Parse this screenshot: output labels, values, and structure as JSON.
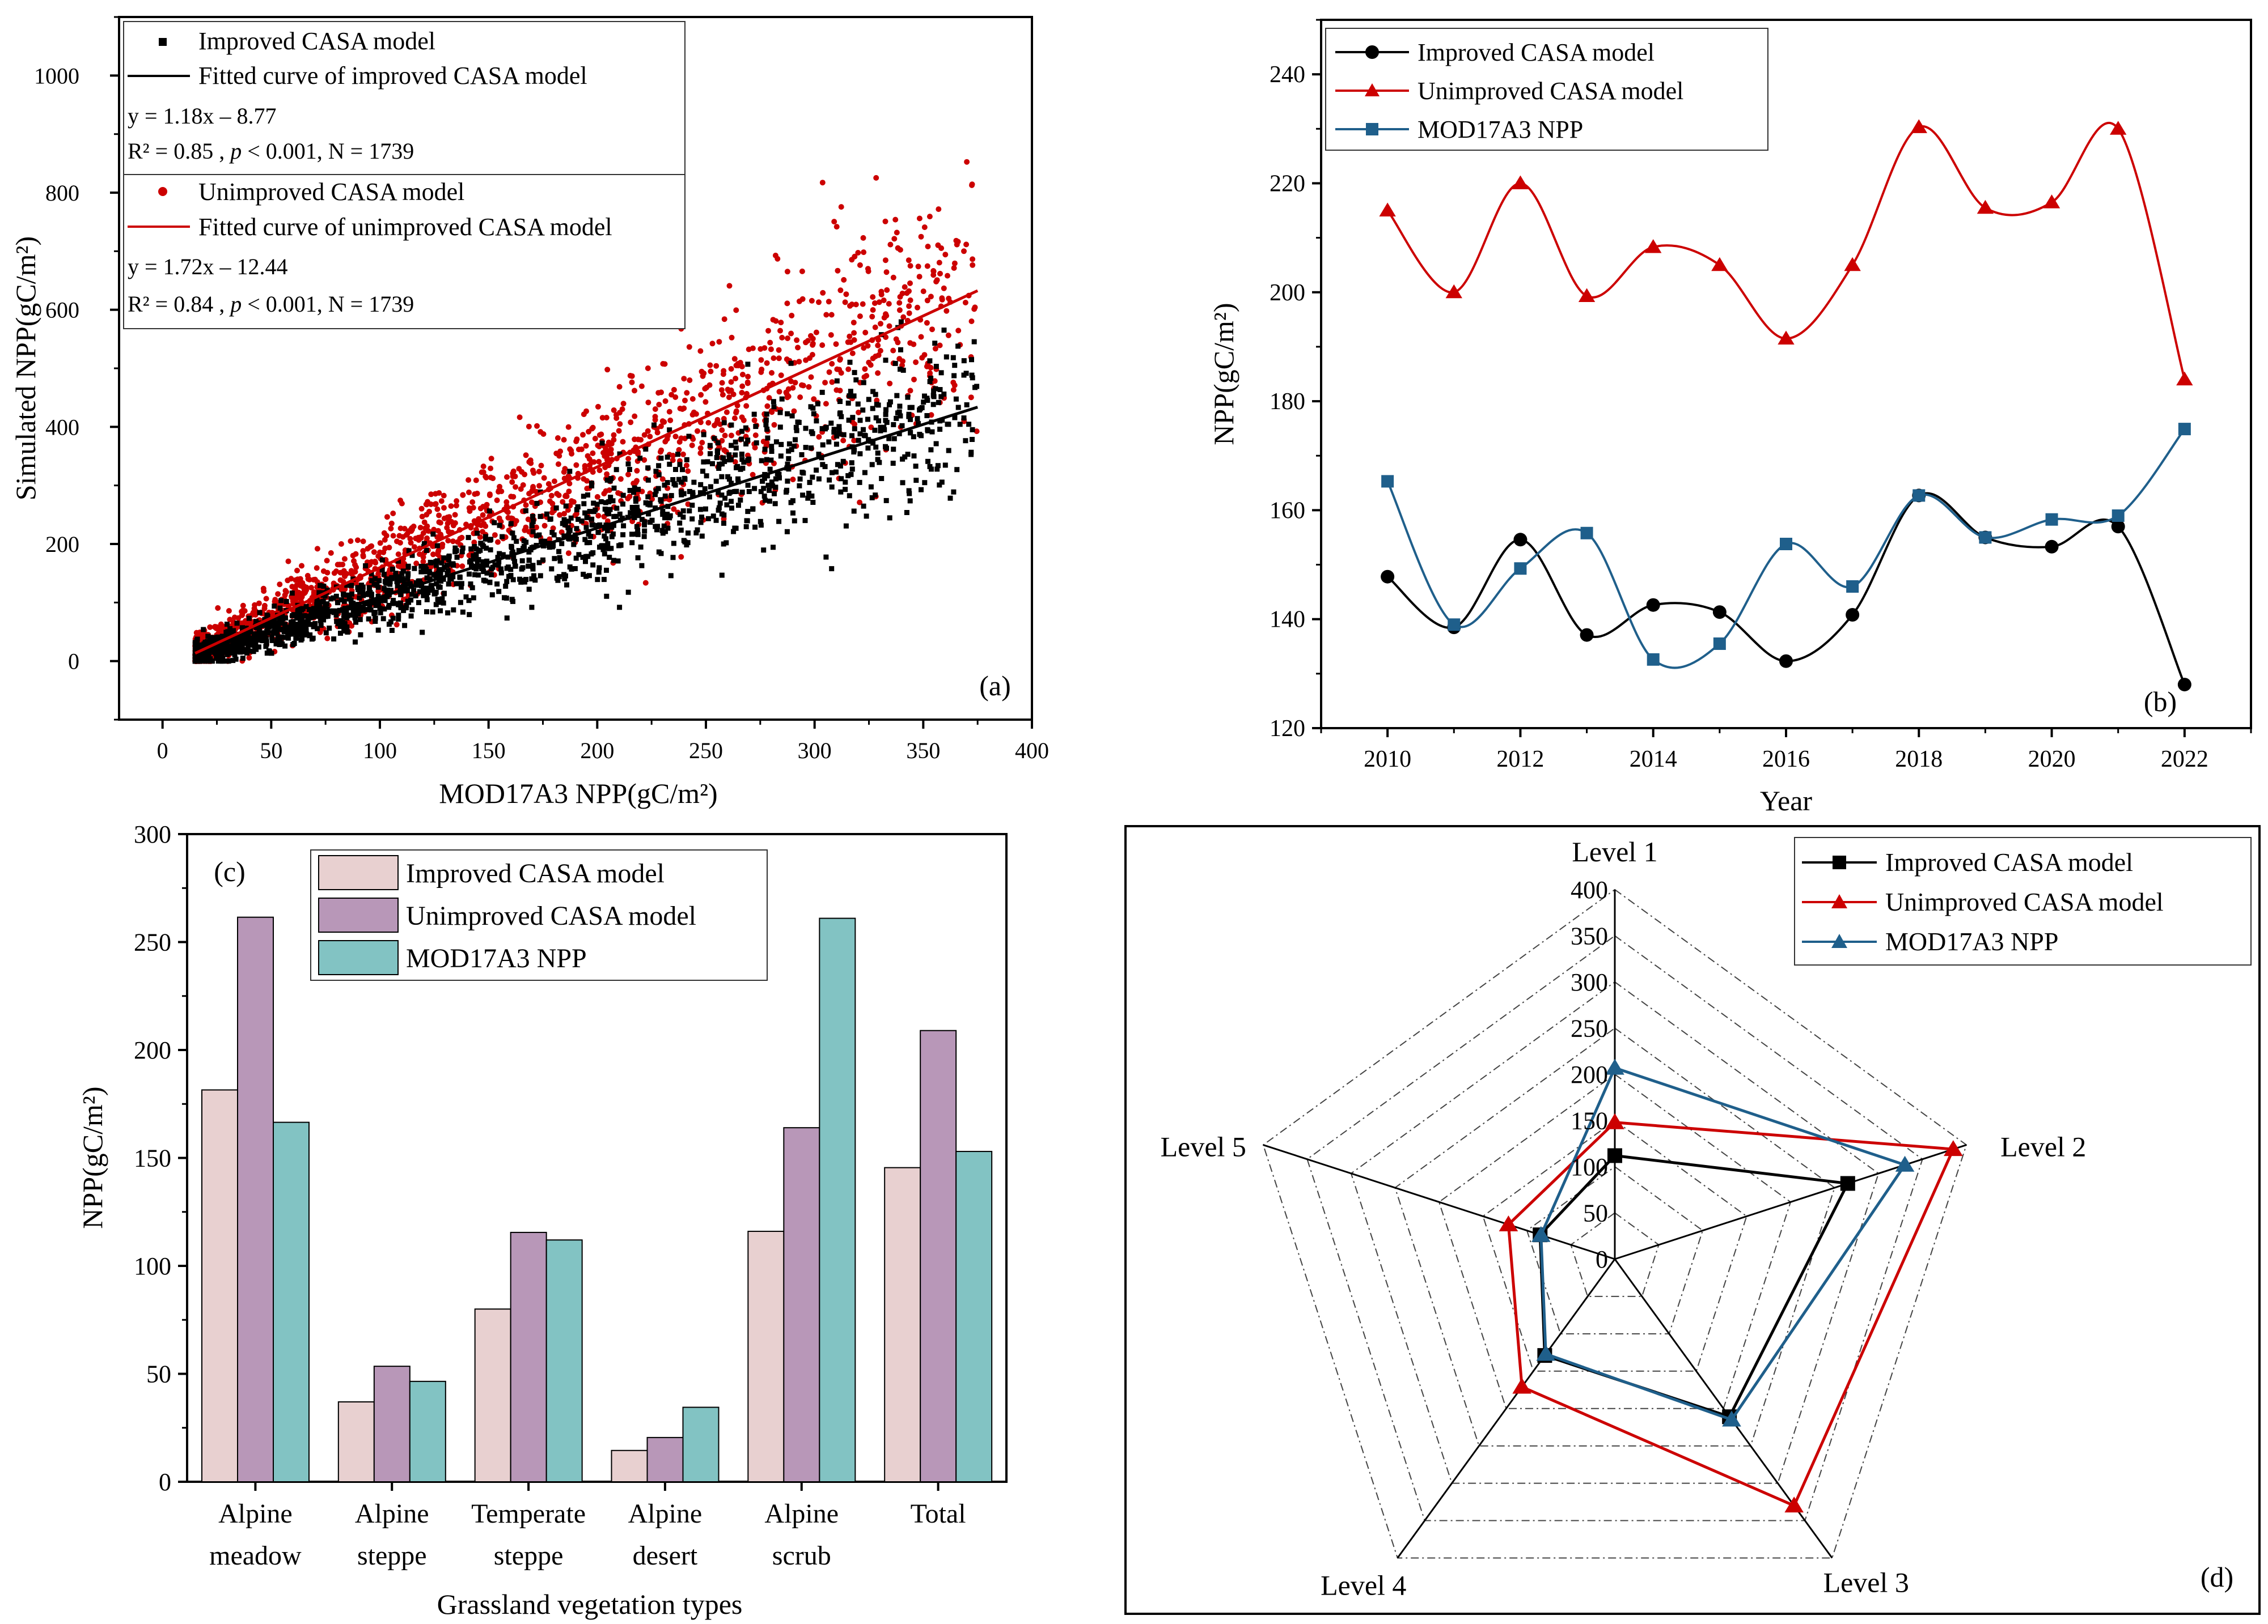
{
  "chart_data": [
    {
      "id": "a",
      "type": "scatter",
      "panel_label": "(a)",
      "xlabel": "MOD17A3 NPP(gC/m²)",
      "ylabel": "Simulated NPP(gC/m²)",
      "xlim": [
        -20,
        400
      ],
      "ylim": [
        -100,
        1100
      ],
      "xticks": [
        0,
        50,
        100,
        150,
        200,
        250,
        300,
        350,
        400
      ],
      "yticks": [
        0,
        200,
        400,
        600,
        800,
        1000
      ],
      "x_range_points": [
        15,
        375
      ],
      "series": [
        {
          "name": "Improved CASA model",
          "fit_name": "Fitted curve of improved CASA model",
          "slope": 1.18,
          "intercept": -8.77,
          "color": "#000000",
          "marker": "square",
          "equation": "y = 1.18x – 8.77",
          "stats_r2": "R² = 0.85 , ",
          "stats_p": "p",
          "stats_rest": " < 0.001, N = 1739"
        },
        {
          "name": "Unimproved CASA model",
          "fit_name": "Fitted curve of unimproved CASA model",
          "slope": 1.72,
          "intercept": -12.44,
          "color": "#cc0000",
          "marker": "circle",
          "equation": "y = 1.72x – 12.44",
          "stats_r2": "R² = 0.84 , ",
          "stats_p": "p",
          "stats_rest": " < 0.001, N = 1739"
        }
      ],
      "n_points": 1739
    },
    {
      "id": "b",
      "type": "line",
      "panel_label": "(b)",
      "xlabel": "Year",
      "ylabel": "NPP(gC/m²)",
      "xlim": [
        2009,
        2023
      ],
      "ylim": [
        120,
        250
      ],
      "xticks": [
        2010,
        2012,
        2014,
        2016,
        2018,
        2020,
        2022
      ],
      "yticks": [
        120,
        140,
        160,
        180,
        200,
        220,
        240
      ],
      "x": [
        2010,
        2011,
        2012,
        2013,
        2014,
        2015,
        2016,
        2017,
        2018,
        2019,
        2020,
        2021,
        2022
      ],
      "series": [
        {
          "name": "Improved CASA model",
          "color": "#000000",
          "marker": "circle",
          "values": [
            147.8,
            138.5,
            154.6,
            137.1,
            142.6,
            141.3,
            132.3,
            140.8,
            162.7,
            155.0,
            153.3,
            157.0,
            128.0
          ]
        },
        {
          "name": "Unimproved CASA model",
          "color": "#cc0000",
          "marker": "triangle",
          "values": [
            215.0,
            200.0,
            220.0,
            199.3,
            208.3,
            205.0,
            191.5,
            205.0,
            230.3,
            215.5,
            216.5,
            230.0,
            184.0
          ]
        },
        {
          "name": "MOD17A3 NPP",
          "color": "#1f5f8b",
          "marker": "square",
          "values": [
            165.3,
            139.0,
            149.3,
            155.8,
            132.6,
            135.5,
            153.8,
            146.0,
            162.7,
            155.0,
            158.3,
            159.0,
            174.9
          ]
        }
      ]
    },
    {
      "id": "c",
      "type": "bar",
      "panel_label": "(c)",
      "xlabel": "Grassland vegetation types",
      "ylabel": "NPP(gC/m²)",
      "ylim": [
        0,
        300
      ],
      "yticks": [
        0,
        50,
        100,
        150,
        200,
        250,
        300
      ],
      "categories": [
        {
          "l1": "Alpine",
          "l2": "meadow"
        },
        {
          "l1": "Alpine",
          "l2": "steppe"
        },
        {
          "l1": "Temperate",
          "l2": "steppe"
        },
        {
          "l1": "Alpine",
          "l2": "desert"
        },
        {
          "l1": "Alpine",
          "l2": "scrub"
        },
        {
          "l1": "Total",
          "l2": ""
        }
      ],
      "series": [
        {
          "name": "Improved CASA model",
          "color": "#e8d0d0",
          "values": [
            181.5,
            37.0,
            80.0,
            14.5,
            116.0,
            145.5
          ]
        },
        {
          "name": "Unimproved CASA model",
          "color": "#b897b8",
          "values": [
            261.5,
            53.5,
            115.5,
            20.5,
            164.0,
            209.0
          ]
        },
        {
          "name": "MOD17A3 NPP",
          "color": "#82c3c3",
          "values": [
            166.5,
            46.5,
            112.0,
            34.5,
            261.0,
            153.0
          ]
        }
      ]
    },
    {
      "id": "d",
      "type": "radar",
      "panel_label": "(d)",
      "axes": [
        "Level 1",
        "Level 2",
        "Level 3",
        "Level 4",
        "Level 5"
      ],
      "rlim": [
        0,
        400
      ],
      "rticks": [
        0,
        50,
        100,
        150,
        200,
        250,
        300,
        350,
        400
      ],
      "series": [
        {
          "name": "Improved CASA model",
          "color": "#000000",
          "marker": "square",
          "values": [
            112,
            265,
            211,
            129,
            85
          ]
        },
        {
          "name": "Unimproved CASA model",
          "color": "#cc0000",
          "marker": "triangle",
          "values": [
            148,
            385,
            330,
            171,
            121
          ]
        },
        {
          "name": "MOD17A3 NPP",
          "color": "#1f5f8b",
          "marker": "triangle",
          "values": [
            207,
            330,
            215,
            127,
            84
          ]
        }
      ]
    }
  ]
}
